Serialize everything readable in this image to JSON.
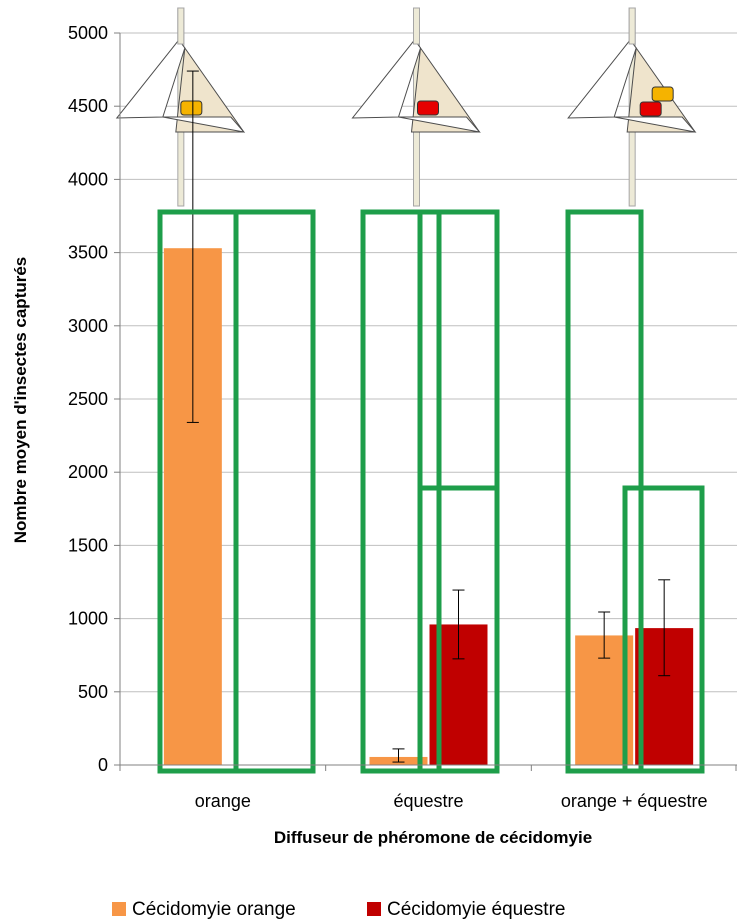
{
  "chart_data": {
    "type": "bar",
    "title": "",
    "xlabel": "Diffuseur de phéromone de cécidomyie",
    "ylabel": "Nombre moyen d'insectes capturés",
    "ylim": [
      0,
      5000
    ],
    "yticks": [
      0,
      500,
      1000,
      1500,
      2000,
      2500,
      3000,
      3500,
      4000,
      4500,
      5000
    ],
    "grid": true,
    "legend_position": "bottom",
    "categories": [
      "orange",
      "équestre",
      "orange + équestre"
    ],
    "series": [
      {
        "name": "Cécidomyie orange",
        "color": "#F79646",
        "values": [
          3530,
          55,
          885
        ],
        "error_low": [
          2340,
          20,
          730
        ],
        "error_high": [
          4740,
          110,
          1045
        ]
      },
      {
        "name": "Cécidomyie équestre",
        "color": "#C00000",
        "values": [
          0,
          960,
          935
        ],
        "error_low": [
          null,
          725,
          610
        ],
        "error_high": [
          null,
          1195,
          1265
        ]
      }
    ],
    "annotations": {
      "highlight_color": "#1E9E4A",
      "trap_icons": [
        "trap-icon-orange-lure",
        "trap-icon-equestre-lure",
        "trap-icon-both-lures"
      ]
    }
  }
}
